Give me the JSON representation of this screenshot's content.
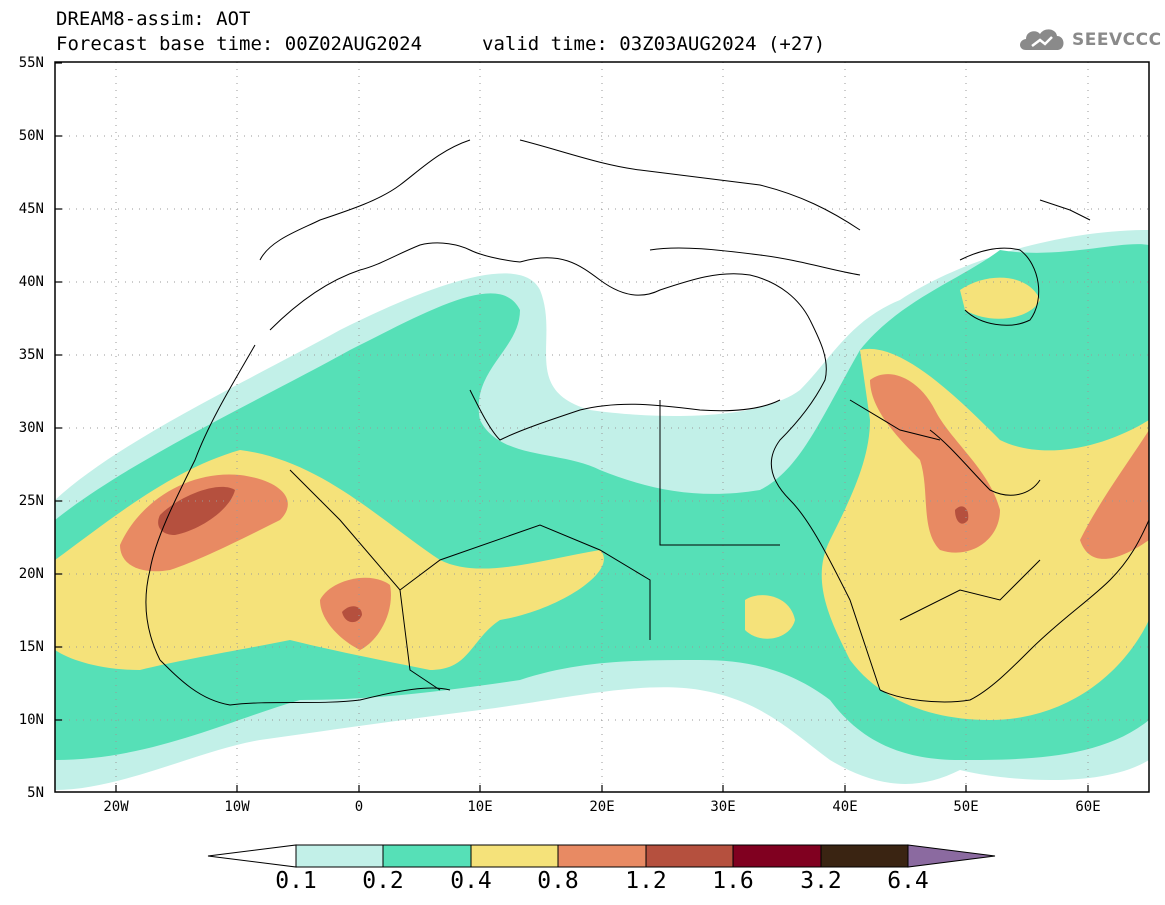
{
  "header": {
    "title": "DREAM8-assim: AOT",
    "base_time": "Forecast base time: 00Z02AUG2024",
    "valid_time": "valid time: 03Z03AUG2024 (+27)",
    "logo_text": "SEEVCCC"
  },
  "map": {
    "lat_labels": [
      "55N",
      "50N",
      "45N",
      "40N",
      "35N",
      "30N",
      "25N",
      "20N",
      "15N",
      "10N",
      "5N"
    ],
    "lon_labels": [
      "20W",
      "10W",
      "0",
      "10E",
      "20E",
      "30E",
      "40E",
      "50E",
      "60E"
    ],
    "lon_range": [
      -25,
      65
    ],
    "lat_range": [
      5,
      55
    ]
  },
  "colorbar": {
    "thresholds": [
      "0.1",
      "0.2",
      "0.4",
      "0.8",
      "1.2",
      "1.6",
      "3.2",
      "6.4"
    ],
    "colors": [
      "#ffffff",
      "#c2f0e8",
      "#56e0b7",
      "#f5e27a",
      "#e88a63",
      "#b5503e",
      "#800020",
      "#3a2412",
      "#8b6aa0"
    ]
  }
}
